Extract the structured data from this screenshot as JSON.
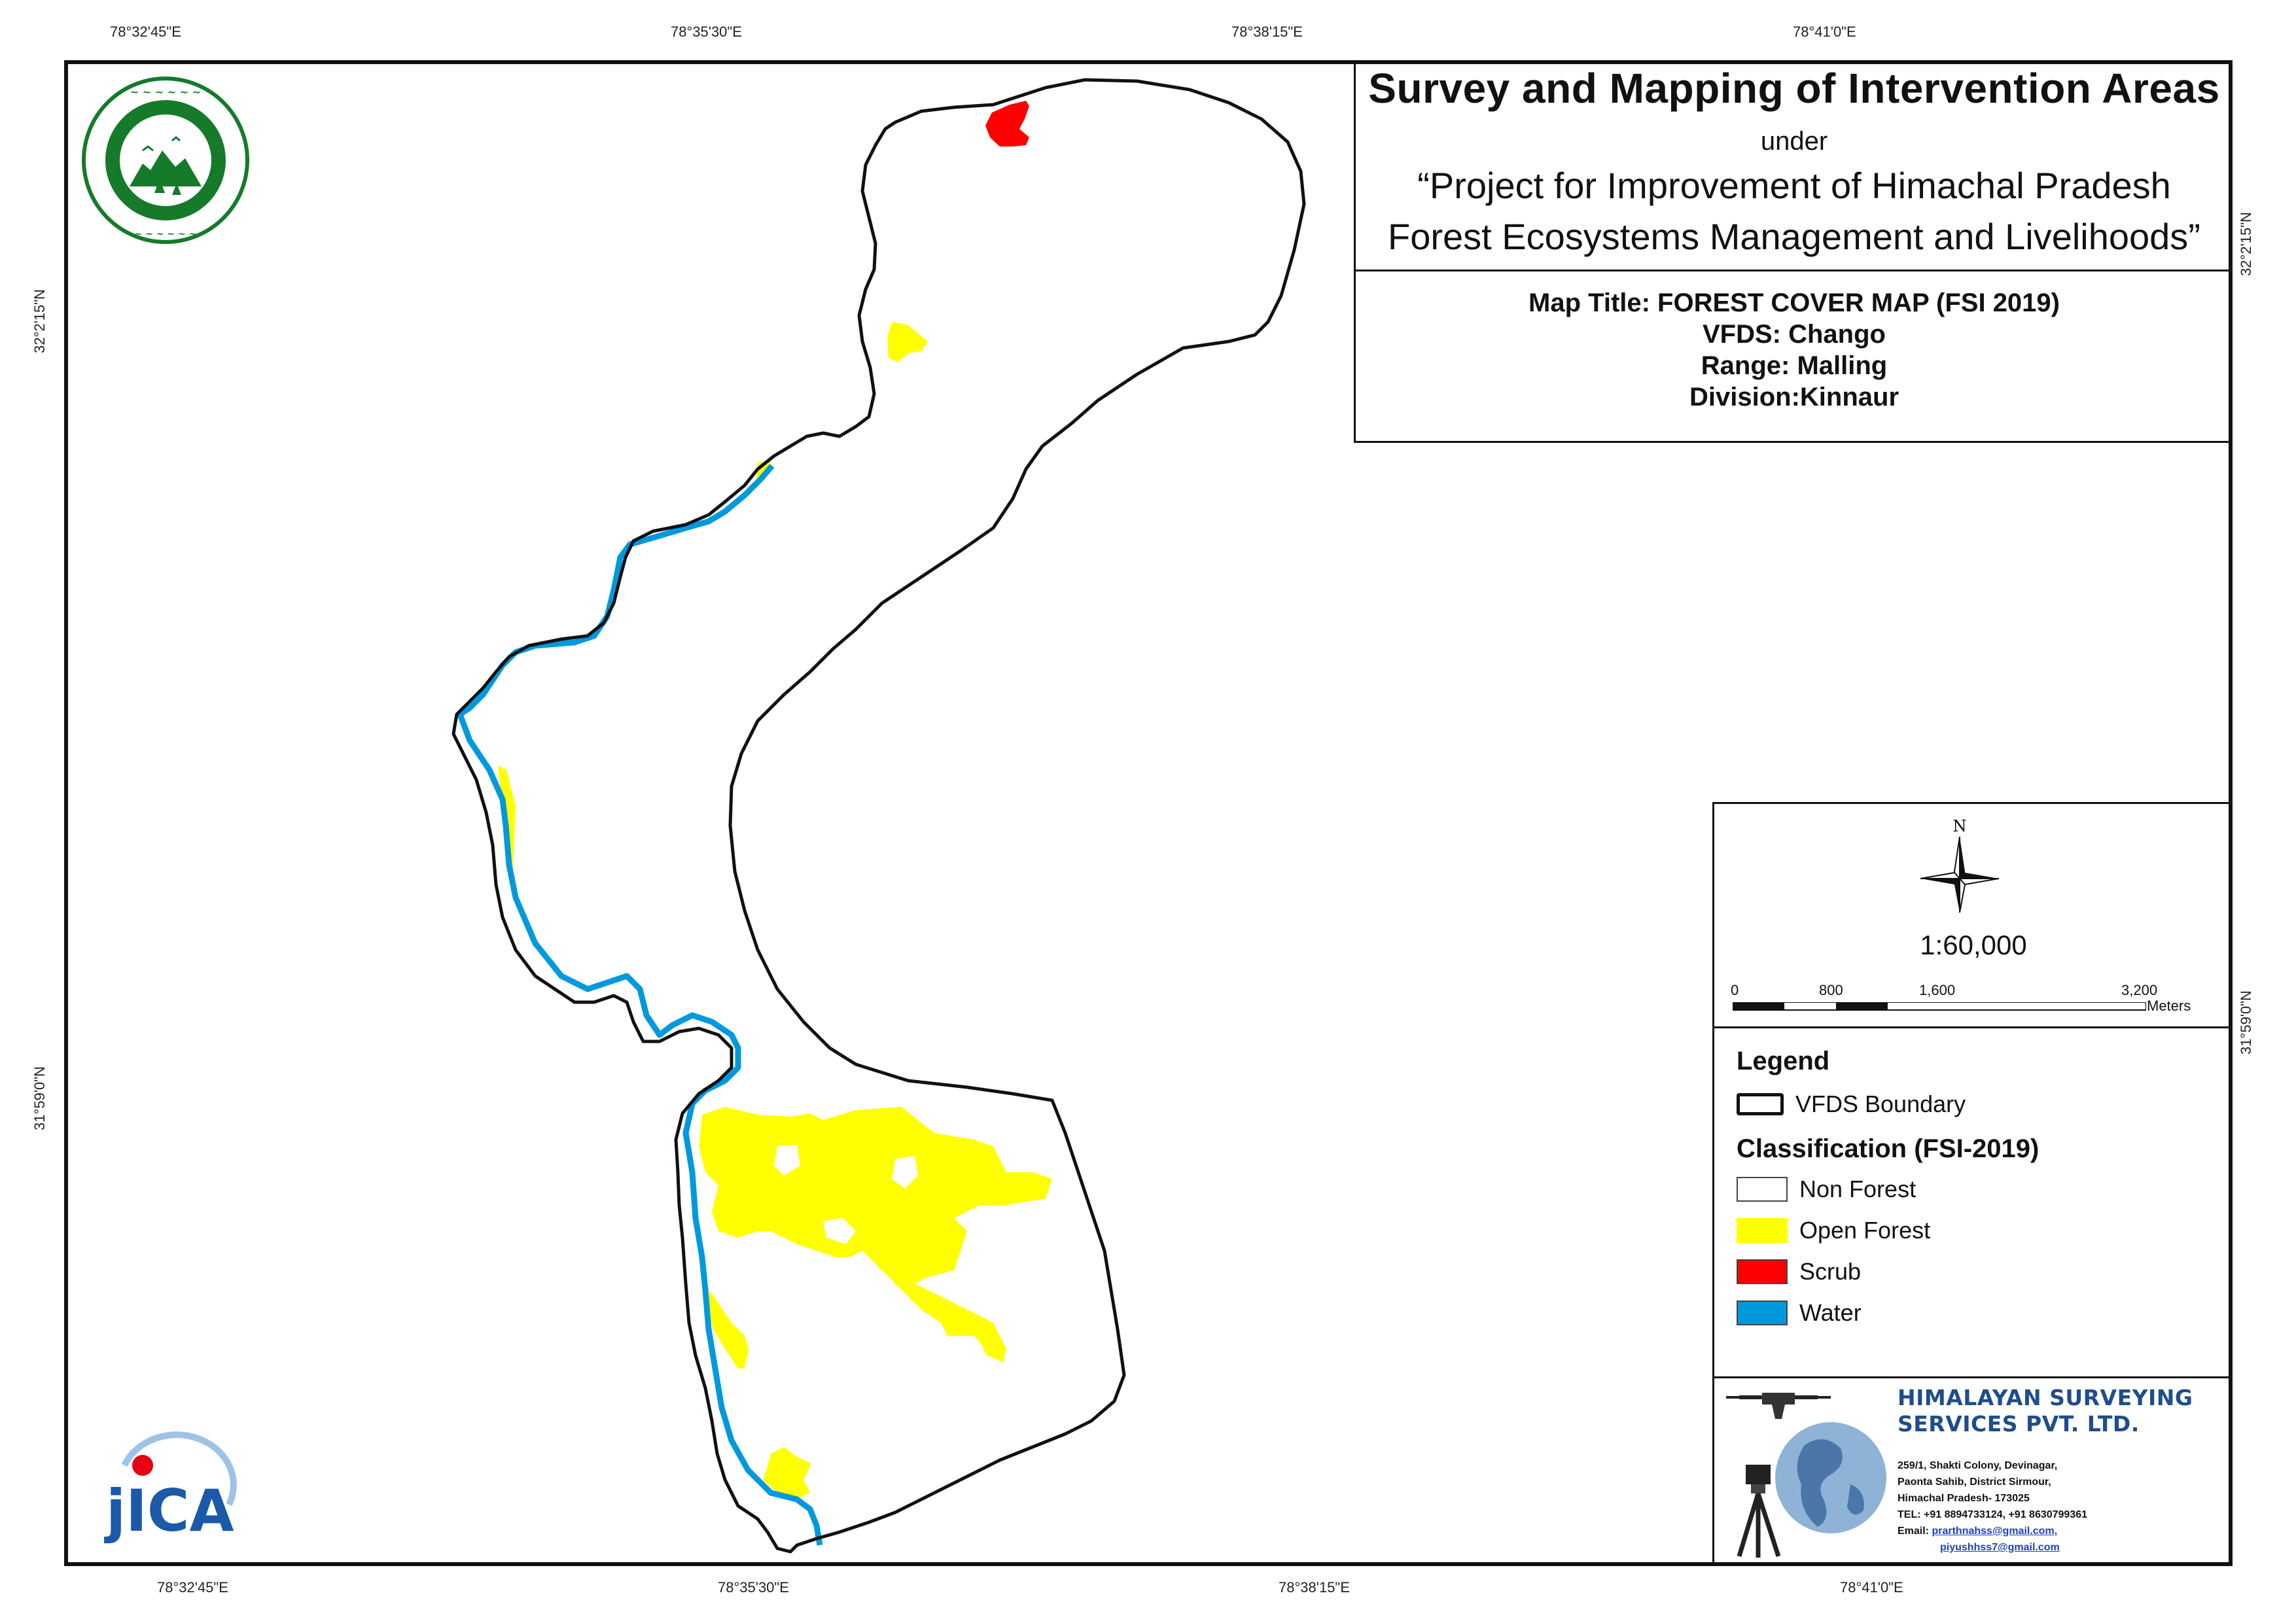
{
  "grid": {
    "top_labels": [
      "78°32'45\"E",
      "78°35'30\"E",
      "78°38'15\"E",
      "78°41'0\"E"
    ],
    "bottom_labels": [
      "78°32'45\"E",
      "78°35'30\"E",
      "78°38'15\"E",
      "78°41'0\"E"
    ],
    "left_labels": [
      "32°2'15\"N",
      "31°59'0\"N"
    ],
    "right_labels": [
      "32°2'15\"N",
      "31°59'0\"N"
    ]
  },
  "title_block": {
    "main_title": "Survey and Mapping of Intervention Areas",
    "under": "under",
    "project_line1": "“Project for Improvement of Himachal Pradesh",
    "project_line2": "Forest Ecosystems Management and Livelihoods”"
  },
  "map_info": {
    "map_title": "Map Title: FOREST COVER MAP (FSI 2019)",
    "vfds": "VFDS: Chango",
    "range": "Range: Malling",
    "division": "Division:Kinnaur"
  },
  "north_arrow": {
    "label": "N"
  },
  "scale": {
    "ratio": "1:60,000",
    "labels": [
      "0",
      "800",
      "1,600",
      "3,200"
    ],
    "unit": "Meters"
  },
  "legend": {
    "heading": "Legend",
    "boundary_label": "VFDS Boundary",
    "classification_heading": "Classification (FSI-2019)",
    "items": [
      {
        "label": "Non Forest",
        "color": "#ffffff"
      },
      {
        "label": "Open Forest",
        "color": "#ffff00"
      },
      {
        "label": "Scrub",
        "color": "#ff0000"
      },
      {
        "label": "Water",
        "color": "#0099dd"
      }
    ]
  },
  "company": {
    "name_line1": "HIMALAYAN SURVEYING",
    "name_line2": "SERVICES PVT. LTD.",
    "address_line1": "259/1, Shakti Colony, Devinagar,",
    "address_line2": "Paonta Sahib, District Sirmour,",
    "address_line3": "Himachal Pradesh- 173025",
    "tel": "TEL: +91 8894733124, +91 8630799361",
    "email_label": "Email:",
    "email1": "prarthnahss@gmail.com,",
    "email2": "piyushhss7@gmail.com"
  },
  "logos": {
    "forest_dept": {
      "icon": "hp-forest-department-emblem",
      "color": "#157a2a"
    },
    "jica": {
      "icon": "jica-logo",
      "text": "JICA",
      "color": "#1a5aa8",
      "accent": "#e60012"
    }
  }
}
